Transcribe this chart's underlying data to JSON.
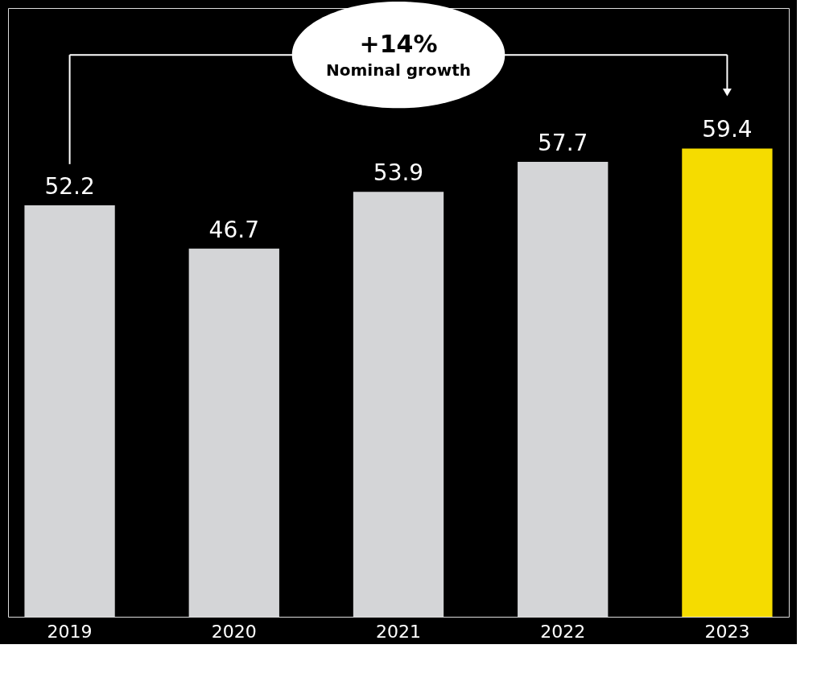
{
  "chart_data": {
    "type": "bar",
    "categories": [
      "2019",
      "2020",
      "2021",
      "2022",
      "2023"
    ],
    "values": [
      52.2,
      46.7,
      53.9,
      57.7,
      59.4
    ],
    "colors": [
      "#d4d5d7",
      "#d4d5d7",
      "#d4d5d7",
      "#d4d5d7",
      "#f5dc00"
    ],
    "data_labels": true,
    "grid": false,
    "annotations": [
      "+14%",
      "Nominal growth"
    ]
  }
}
